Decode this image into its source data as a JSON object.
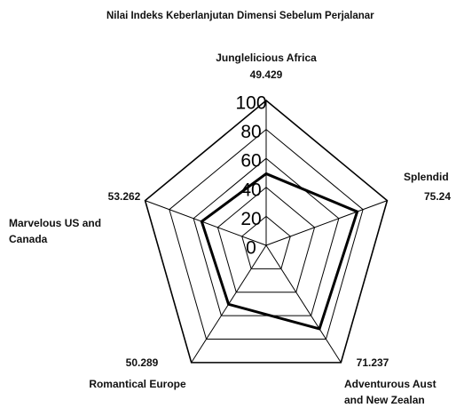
{
  "chart_data": {
    "type": "radar",
    "title": "Nilai Indeks Keberlanjutan Dimensi Sebelum Perjalanar",
    "categories": [
      [
        "Junglelicious Africa"
      ],
      [
        "Splendid"
      ],
      [
        "Adventurous Aust",
        "and New Zealan"
      ],
      [
        "Romantical Europe"
      ],
      [
        "Marvelous US and",
        "Canada"
      ]
    ],
    "values": [
      49.429,
      75.24,
      71.237,
      50.289,
      53.262
    ],
    "color": "#000000",
    "rlim": [
      0,
      100
    ],
    "rticks": [
      0,
      20,
      40,
      60,
      80,
      100
    ],
    "grid": true
  }
}
